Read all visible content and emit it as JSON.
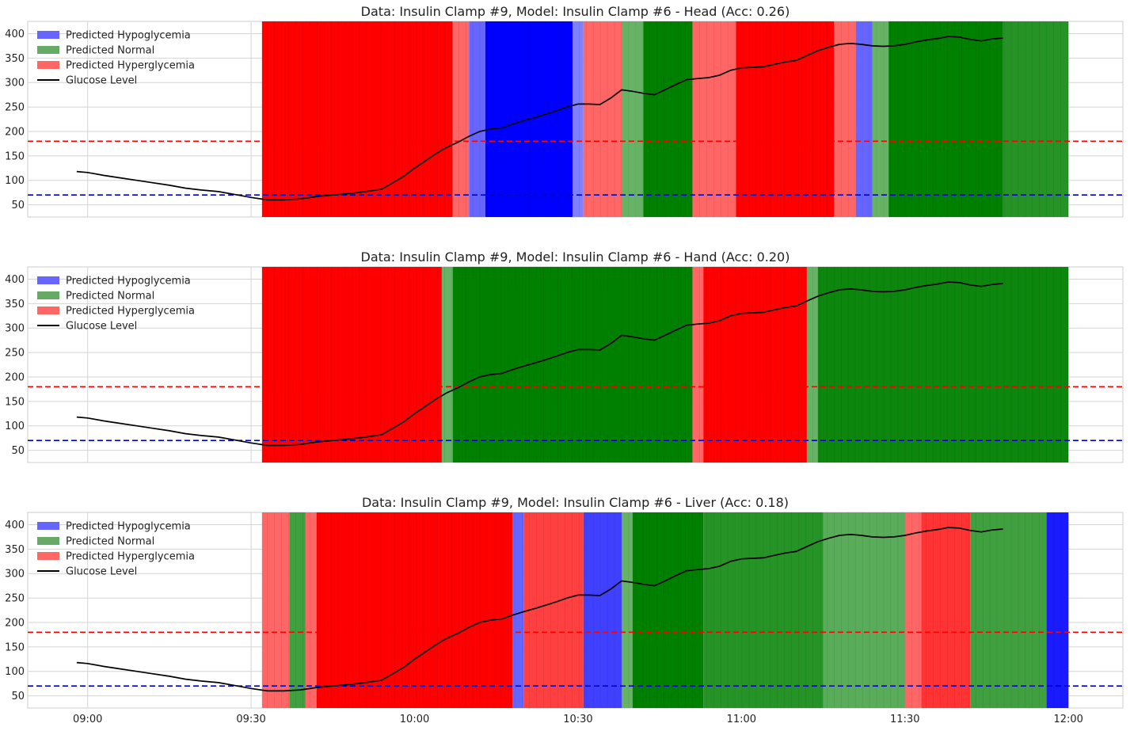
{
  "chart_data": [
    {
      "type": "line",
      "title": "Data: Insulin Clamp #9, Model: Insulin Clamp #6 - Head (Acc: 0.26)",
      "ylim": [
        25,
        425
      ],
      "yticks": [
        50,
        100,
        150,
        200,
        250,
        300,
        350,
        400
      ],
      "xlim": [
        "08:49",
        "12:10"
      ],
      "xticks": [
        "09:00",
        "09:30",
        "10:00",
        "10:30",
        "11:00",
        "11:30",
        "12:00"
      ],
      "thresholds": [
        {
          "value": 180,
          "color": "#ff0000"
        },
        {
          "value": 70,
          "color": "#0000cc"
        }
      ],
      "legend_position": "upper-left",
      "legend": [
        {
          "label": "Predicted Hypoglycemia",
          "color": "#6666ff"
        },
        {
          "label": "Predicted Normal",
          "color": "#66aa66"
        },
        {
          "label": "Predicted Hyperglycemia",
          "color": "#ff6666"
        },
        {
          "label": "Glucose Level",
          "color": "#000000"
        }
      ],
      "segments": [
        {
          "start": "09:32",
          "end": "10:07",
          "class": "hyper",
          "intensity": 1.0
        },
        {
          "start": "10:07",
          "end": "10:10",
          "class": "hyper",
          "intensity": 0.6
        },
        {
          "start": "10:10",
          "end": "10:13",
          "class": "hypo",
          "intensity": 0.6
        },
        {
          "start": "10:13",
          "end": "10:29",
          "class": "hypo",
          "intensity": 1.0
        },
        {
          "start": "10:29",
          "end": "10:31",
          "class": "hypo",
          "intensity": 0.5
        },
        {
          "start": "10:31",
          "end": "10:38",
          "class": "hyper",
          "intensity": 0.6
        },
        {
          "start": "10:38",
          "end": "10:42",
          "class": "normal",
          "intensity": 0.6
        },
        {
          "start": "10:42",
          "end": "10:51",
          "class": "normal",
          "intensity": 1.0
        },
        {
          "start": "10:51",
          "end": "10:59",
          "class": "hyper",
          "intensity": 0.6
        },
        {
          "start": "10:59",
          "end": "11:17",
          "class": "hyper",
          "intensity": 1.0
        },
        {
          "start": "11:17",
          "end": "11:21",
          "class": "hyper",
          "intensity": 0.6
        },
        {
          "start": "11:21",
          "end": "11:24",
          "class": "hypo",
          "intensity": 0.6
        },
        {
          "start": "11:24",
          "end": "11:27",
          "class": "normal",
          "intensity": 0.6
        },
        {
          "start": "11:27",
          "end": "11:48",
          "class": "normal",
          "intensity": 1.0
        },
        {
          "start": "11:48",
          "end": "12:00",
          "class": "normal",
          "intensity": 0.85
        }
      ]
    },
    {
      "type": "line",
      "title": "Data: Insulin Clamp #9, Model: Insulin Clamp #6 - Hand (Acc: 0.20)",
      "ylim": [
        25,
        425
      ],
      "yticks": [
        50,
        100,
        150,
        200,
        250,
        300,
        350,
        400
      ],
      "xlim": [
        "08:49",
        "12:10"
      ],
      "xticks": [
        "09:00",
        "09:30",
        "10:00",
        "10:30",
        "11:00",
        "11:30",
        "12:00"
      ],
      "thresholds": [
        {
          "value": 180,
          "color": "#ff0000"
        },
        {
          "value": 70,
          "color": "#0000cc"
        }
      ],
      "legend_position": "upper-left",
      "legend": [
        {
          "label": "Predicted Hypoglycemia",
          "color": "#6666ff"
        },
        {
          "label": "Predicted Normal",
          "color": "#66aa66"
        },
        {
          "label": "Predicted Hyperglycemia",
          "color": "#ff6666"
        },
        {
          "label": "Glucose Level",
          "color": "#000000"
        }
      ],
      "segments": [
        {
          "start": "09:32",
          "end": "10:05",
          "class": "hyper",
          "intensity": 1.0
        },
        {
          "start": "10:05",
          "end": "10:07",
          "class": "normal",
          "intensity": 0.6
        },
        {
          "start": "10:07",
          "end": "10:51",
          "class": "normal",
          "intensity": 1.0
        },
        {
          "start": "10:51",
          "end": "10:53",
          "class": "hyper",
          "intensity": 0.6
        },
        {
          "start": "10:53",
          "end": "11:12",
          "class": "hyper",
          "intensity": 1.0
        },
        {
          "start": "11:12",
          "end": "11:14",
          "class": "normal",
          "intensity": 0.6
        },
        {
          "start": "11:14",
          "end": "12:00",
          "class": "normal",
          "intensity": 0.95
        }
      ]
    },
    {
      "type": "line",
      "title": "Data: Insulin Clamp #9, Model: Insulin Clamp #6 - Liver (Acc: 0.18)",
      "ylim": [
        25,
        425
      ],
      "yticks": [
        50,
        100,
        150,
        200,
        250,
        300,
        350,
        400
      ],
      "xlim": [
        "08:49",
        "12:10"
      ],
      "xticks": [
        "09:00",
        "09:30",
        "10:00",
        "10:30",
        "11:00",
        "11:30",
        "12:00"
      ],
      "thresholds": [
        {
          "value": 180,
          "color": "#ff0000"
        },
        {
          "value": 70,
          "color": "#0000cc"
        }
      ],
      "legend_position": "upper-left",
      "legend": [
        {
          "label": "Predicted Hypoglycemia",
          "color": "#6666ff"
        },
        {
          "label": "Predicted Normal",
          "color": "#66aa66"
        },
        {
          "label": "Predicted Hyperglycemia",
          "color": "#ff6666"
        },
        {
          "label": "Glucose Level",
          "color": "#000000"
        }
      ],
      "segments": [
        {
          "start": "09:32",
          "end": "09:37",
          "class": "hyper",
          "intensity": 0.6
        },
        {
          "start": "09:37",
          "end": "09:40",
          "class": "normal",
          "intensity": 0.75
        },
        {
          "start": "09:40",
          "end": "09:42",
          "class": "hyper",
          "intensity": 0.6
        },
        {
          "start": "09:42",
          "end": "10:18",
          "class": "hyper",
          "intensity": 1.0
        },
        {
          "start": "10:18",
          "end": "10:20",
          "class": "hypo",
          "intensity": 0.6
        },
        {
          "start": "10:20",
          "end": "10:31",
          "class": "hyper",
          "intensity": 0.75
        },
        {
          "start": "10:31",
          "end": "10:38",
          "class": "hypo",
          "intensity": 0.75
        },
        {
          "start": "10:38",
          "end": "10:40",
          "class": "normal",
          "intensity": 0.6
        },
        {
          "start": "10:40",
          "end": "10:53",
          "class": "normal",
          "intensity": 1.0
        },
        {
          "start": "10:53",
          "end": "11:15",
          "class": "normal",
          "intensity": 0.85
        },
        {
          "start": "11:15",
          "end": "11:30",
          "class": "normal",
          "intensity": 0.65
        },
        {
          "start": "11:30",
          "end": "11:33",
          "class": "hyper",
          "intensity": 0.6
        },
        {
          "start": "11:33",
          "end": "11:42",
          "class": "hyper",
          "intensity": 0.8
        },
        {
          "start": "11:42",
          "end": "11:56",
          "class": "normal",
          "intensity": 0.75
        },
        {
          "start": "11:56",
          "end": "12:00",
          "class": "hypo",
          "intensity": 0.9
        }
      ]
    }
  ],
  "glucose_series": {
    "name": "Glucose Level",
    "x": [
      "08:58",
      "09:00",
      "09:03",
      "09:06",
      "09:09",
      "09:12",
      "09:15",
      "09:18",
      "09:21",
      "09:24",
      "09:27",
      "09:30",
      "09:33",
      "09:36",
      "09:39",
      "09:42",
      "09:45",
      "09:48",
      "09:51",
      "09:54",
      "09:56",
      "09:58",
      "10:00",
      "10:02",
      "10:04",
      "10:06",
      "10:08",
      "10:10",
      "10:12",
      "10:14",
      "10:16",
      "10:18",
      "10:20",
      "10:22",
      "10:24",
      "10:26",
      "10:28",
      "10:30",
      "10:32",
      "10:34",
      "10:36",
      "10:38",
      "10:40",
      "10:42",
      "10:44",
      "10:46",
      "10:48",
      "10:50",
      "10:52",
      "10:54",
      "10:56",
      "10:58",
      "11:00",
      "11:02",
      "11:04",
      "11:06",
      "11:08",
      "11:10",
      "11:12",
      "11:14",
      "11:16",
      "11:18",
      "11:20",
      "11:22",
      "11:24",
      "11:26",
      "11:28",
      "11:30",
      "11:32",
      "11:34",
      "11:36",
      "11:38",
      "11:40",
      "11:42",
      "11:44",
      "11:46",
      "11:48"
    ],
    "y": [
      118,
      116,
      110,
      105,
      100,
      95,
      90,
      84,
      80,
      77,
      71,
      65,
      60,
      60,
      62,
      67,
      70,
      73,
      77,
      82,
      95,
      108,
      125,
      140,
      155,
      168,
      178,
      190,
      200,
      205,
      207,
      215,
      222,
      228,
      235,
      242,
      250,
      256,
      256,
      255,
      268,
      285,
      282,
      278,
      275,
      285,
      296,
      306,
      308,
      310,
      315,
      325,
      330,
      331,
      332,
      337,
      342,
      345,
      355,
      365,
      372,
      378,
      380,
      378,
      375,
      374,
      375,
      378,
      383,
      387,
      390,
      394,
      393,
      388,
      385,
      389,
      391
    ]
  }
}
